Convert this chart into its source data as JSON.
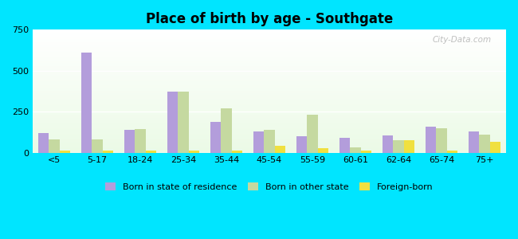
{
  "title": "Place of birth by age - Southgate",
  "categories": [
    "<5",
    "5-17",
    "18-24",
    "25-34",
    "35-44",
    "45-54",
    "55-59",
    "60-61",
    "62-64",
    "65-74",
    "75+"
  ],
  "born_in_state": [
    120,
    610,
    140,
    370,
    185,
    130,
    100,
    90,
    105,
    160,
    130
  ],
  "born_other_state": [
    80,
    80,
    145,
    370,
    270,
    140,
    230,
    30,
    75,
    150,
    110
  ],
  "foreign_born": [
    10,
    10,
    10,
    10,
    10,
    40,
    25,
    10,
    75,
    10,
    65
  ],
  "bar_color_state": "#b39ddb",
  "bar_color_other": "#c5d9a0",
  "bar_color_foreign": "#f0e040",
  "background_outer": "#00e5ff",
  "ylim": [
    0,
    750
  ],
  "yticks": [
    0,
    250,
    500,
    750
  ],
  "watermark": "City-Data.com",
  "legend_labels": [
    "Born in state of residence",
    "Born in other state",
    "Foreign-born"
  ],
  "bar_width": 0.25,
  "title_fontsize": 12,
  "tick_fontsize": 8
}
